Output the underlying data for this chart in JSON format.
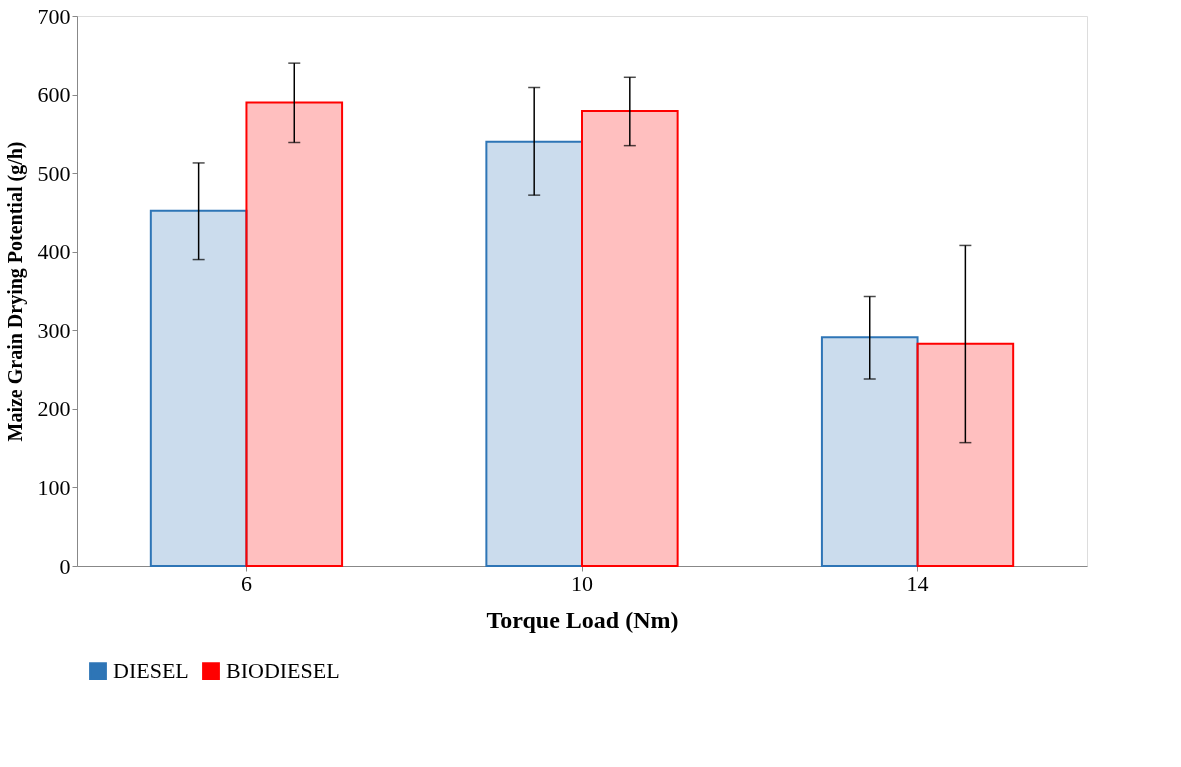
{
  "chart_data": {
    "type": "bar",
    "xlabel": "Torque Load (Nm)",
    "ylabel": "Maize Grain Drying Potential (g/h)",
    "categories": [
      "6",
      "10",
      "14"
    ],
    "series": [
      {
        "name": "DIESEL",
        "color": "#2e75b6",
        "values": [
          452,
          540,
          291
        ],
        "errors": [
          [
            390,
            513
          ],
          [
            472,
            609
          ],
          [
            238,
            343
          ]
        ]
      },
      {
        "name": "BIODIESEL",
        "color": "#ff0000",
        "values": [
          590,
          579,
          283
        ],
        "errors": [
          [
            539,
            640
          ],
          [
            535,
            622
          ],
          [
            157,
            408
          ]
        ]
      }
    ],
    "ylim": [
      0,
      700
    ],
    "yticks": [
      0,
      100,
      200,
      300,
      400,
      500,
      600,
      700
    ],
    "grid": false,
    "legend": "bottom"
  }
}
